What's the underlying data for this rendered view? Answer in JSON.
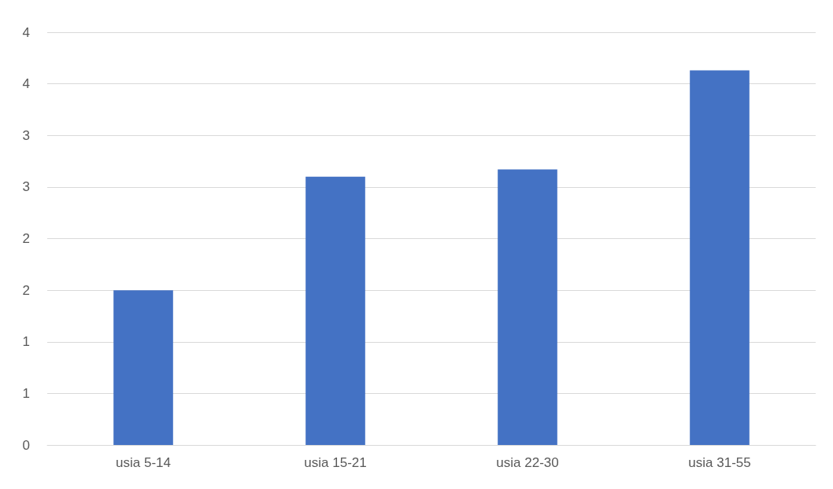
{
  "chart_data": {
    "type": "bar",
    "categories": [
      "usia 5-14",
      "usia 15-21",
      "usia 22-30",
      "usia 31-55"
    ],
    "values": [
      1.5,
      2.6,
      2.67,
      3.63
    ],
    "color": "#4472c4",
    "ylim": [
      0,
      4
    ],
    "yticks": [
      {
        "value": 0,
        "label": "0"
      },
      {
        "value": 0.5,
        "label": "1"
      },
      {
        "value": 1,
        "label": "1"
      },
      {
        "value": 1.5,
        "label": "2"
      },
      {
        "value": 2,
        "label": "2"
      },
      {
        "value": 2.5,
        "label": "3"
      },
      {
        "value": 3,
        "label": "3"
      },
      {
        "value": 3.5,
        "label": "4"
      },
      {
        "value": 4,
        "label": "4"
      }
    ],
    "grid": "y"
  }
}
